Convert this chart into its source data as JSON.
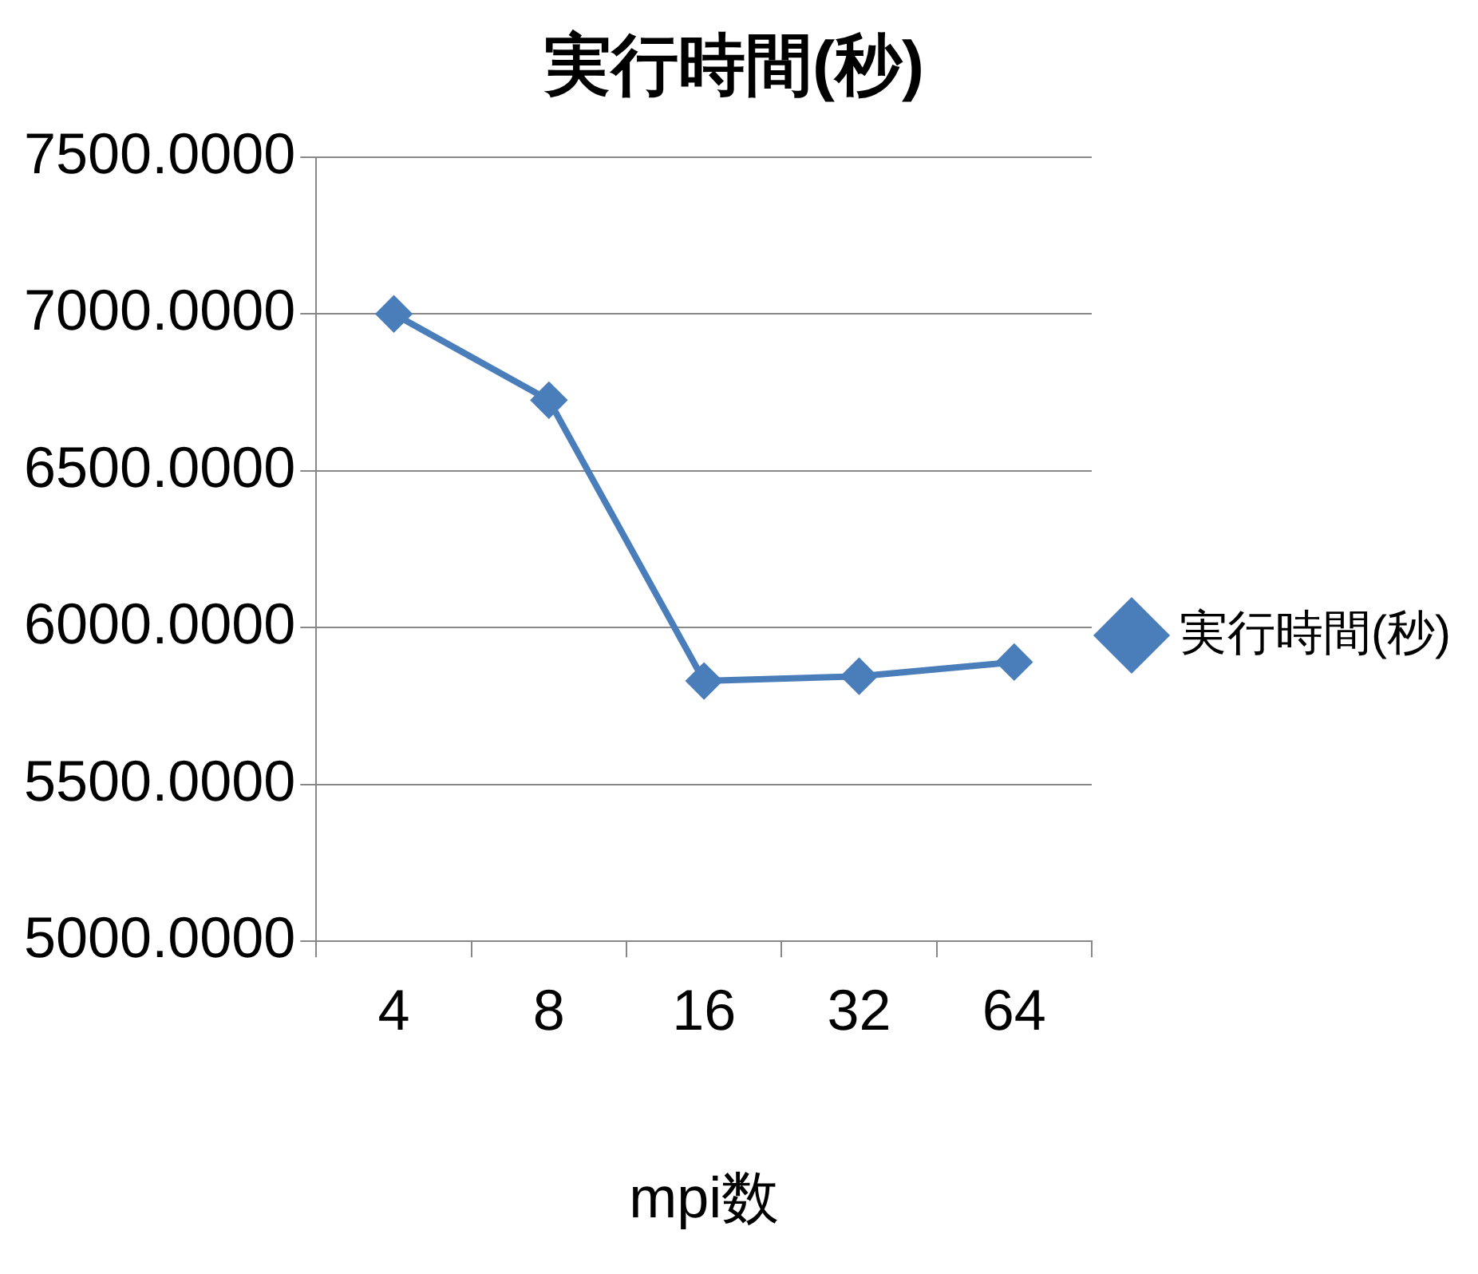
{
  "chart_data": {
    "type": "line",
    "title": "実行時間(秒)",
    "xlabel": "mpi数",
    "categories": [
      "4",
      "8",
      "16",
      "32",
      "64"
    ],
    "series": [
      {
        "name": "実行時間(秒)",
        "color": "#4a7ebb",
        "values": [
          7000,
          6725,
          5830,
          5845,
          5890
        ]
      }
    ],
    "ylim": [
      5000,
      7500
    ],
    "yticks": [
      {
        "value": 5000,
        "label": "5000.0000"
      },
      {
        "value": 5500,
        "label": "5500.0000"
      },
      {
        "value": 6000,
        "label": "6000.0000"
      },
      {
        "value": 6500,
        "label": "6500.0000"
      },
      {
        "value": 7000,
        "label": "7000.0000"
      },
      {
        "value": 7500,
        "label": "7500.0000"
      }
    ],
    "grid": "y",
    "legend": "right",
    "marker": "diamond",
    "line_style": "solid"
  }
}
